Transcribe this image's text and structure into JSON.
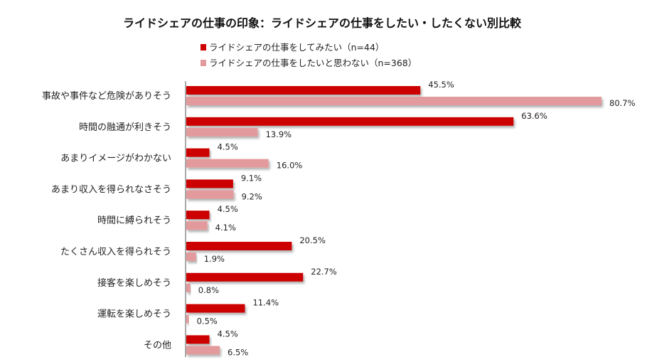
{
  "chart_data": {
    "type": "bar",
    "orientation": "horizontal",
    "title": "ライドシェアの仕事の印象：ライドシェアの仕事をしたい・したくない別比較",
    "categories": [
      "事故や事件など危険がありそう",
      "時間の融通が利きそう",
      "あまりイメージがわかない",
      "あまり収入を得られなさそう",
      "時間に縛られそう",
      "たくさん収入を得られそう",
      "接客を楽しめそう",
      "運転を楽しめそう",
      "その他"
    ],
    "series": [
      {
        "name": "ライドシェアの仕事をしてみたい（n=44）",
        "color": "#CC0000",
        "values": [
          45.5,
          63.6,
          4.5,
          9.1,
          4.5,
          20.5,
          22.7,
          11.4,
          4.5
        ],
        "labels": [
          "45.5%",
          "63.6%",
          "4.5%",
          "9.1%",
          "4.5%",
          "20.5%",
          "22.7%",
          "11.4%",
          "4.5%"
        ]
      },
      {
        "name": "ライドシェアの仕事をしたいと思わない（n=368）",
        "color": "#E39A9C",
        "values": [
          80.7,
          13.9,
          16.0,
          9.2,
          4.1,
          1.9,
          0.8,
          0.5,
          6.5
        ],
        "labels": [
          "80.7%",
          "13.9%",
          "16.0%",
          "9.2%",
          "4.1%",
          "1.9%",
          "0.8%",
          "0.5%",
          "6.5%"
        ]
      }
    ],
    "xlim": [
      0,
      80.7
    ],
    "grid": false,
    "legend_position": "top-center"
  }
}
